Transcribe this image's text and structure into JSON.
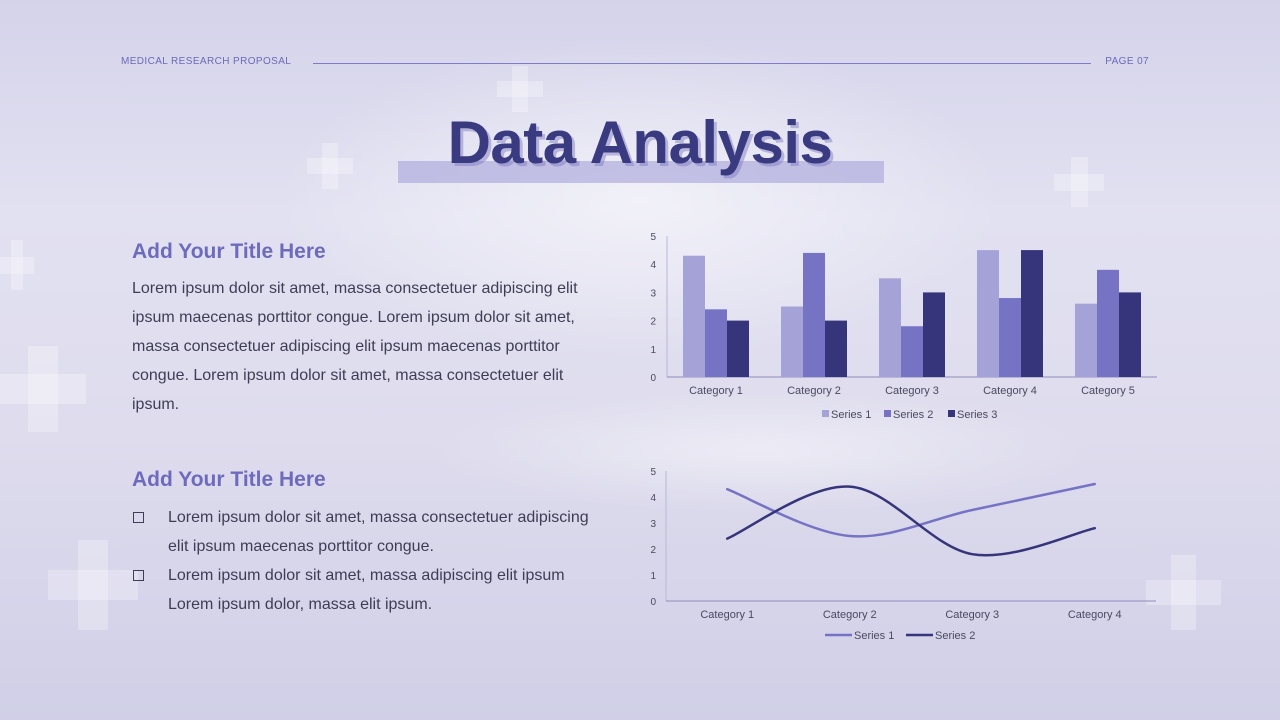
{
  "header": {
    "left": "MEDICAL RESEARCH PROPOSAL",
    "right": "PAGE 07"
  },
  "title": "Data Analysis",
  "section1": {
    "title": "Add Your Title Here",
    "body": "Lorem ipsum dolor sit amet, massa consectetuer adipiscing elit ipsum maecenas porttitor congue. Lorem ipsum dolor sit amet, massa consectetuer adipiscing elit ipsum maecenas porttitor congue. Lorem ipsum dolor sit amet, massa consectetuer elit ipsum."
  },
  "section2": {
    "title": "Add Your Title Here",
    "bullets": [
      "Lorem ipsum dolor sit amet, massa consectetuer adipiscing elit ipsum maecenas porttitor congue.",
      "Lorem ipsum dolor sit amet, massa adipiscing elit ipsum Lorem ipsum dolor, massa elit ipsum."
    ]
  },
  "colors": {
    "series1": "#a5a2d8",
    "series2": "#7673c4",
    "series3": "#36347a",
    "text": "#3e3d55",
    "accent": "#6e6bbd"
  },
  "chart_data": [
    {
      "type": "bar",
      "categories": [
        "Category 1",
        "Category 2",
        "Category 3",
        "Category 4",
        "Category 5"
      ],
      "series": [
        {
          "name": "Series 1",
          "values": [
            4.3,
            2.5,
            3.5,
            4.5,
            2.6
          ]
        },
        {
          "name": "Series 2",
          "values": [
            2.4,
            4.4,
            1.8,
            2.8,
            3.8
          ]
        },
        {
          "name": "Series 3",
          "values": [
            2.0,
            2.0,
            3.0,
            4.5,
            3.0
          ]
        }
      ],
      "yticks": [
        "0",
        "1",
        "2",
        "3",
        "4",
        "5"
      ],
      "ylim": [
        0,
        5
      ],
      "legend": "bottom",
      "grid": false
    },
    {
      "type": "line",
      "categories": [
        "Category 1",
        "Category 2",
        "Category 3",
        "Category 4"
      ],
      "series": [
        {
          "name": "Series 1",
          "values": [
            4.3,
            2.5,
            3.5,
            4.5
          ]
        },
        {
          "name": "Series 2",
          "values": [
            2.4,
            4.4,
            1.8,
            2.8
          ]
        }
      ],
      "yticks": [
        "0",
        "1",
        "2",
        "3",
        "4",
        "5"
      ],
      "ylim": [
        0,
        5
      ],
      "legend": "bottom",
      "grid": false
    }
  ]
}
